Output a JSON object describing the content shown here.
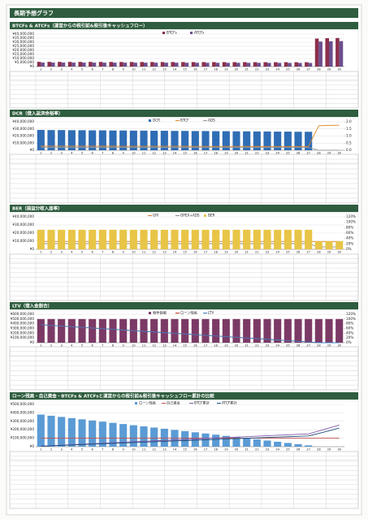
{
  "page_title": "長期予想グラフ",
  "chart_data": [
    {
      "type": "bar",
      "title": "BTCFs & ATCFs（運営からの税引前&税引後キャッシュフロー）",
      "categories": [
        "1",
        "2",
        "3",
        "4",
        "5",
        "6",
        "7",
        "8",
        "9",
        "10",
        "11",
        "12",
        "13",
        "14",
        "15",
        "16",
        "17",
        "18",
        "19",
        "20",
        "21",
        "22",
        "23",
        "24",
        "25",
        "26",
        "27",
        "28",
        "29",
        "30"
      ],
      "series": [
        {
          "name": "BTCFs",
          "type": "bar",
          "color": "#8b2f4a",
          "values": [
            5850000,
            5830000,
            5810000,
            5790000,
            5770000,
            5750000,
            5730000,
            5710000,
            5690000,
            5670000,
            5650000,
            5630000,
            5610000,
            5590000,
            5570000,
            5550000,
            5530000,
            5510000,
            5490000,
            5470000,
            5450000,
            5430000,
            5410000,
            5390000,
            5370000,
            5350000,
            5330000,
            34500000,
            35000000,
            35200000
          ]
        },
        {
          "name": "ATCFs",
          "type": "bar",
          "color": "#6b4f8f",
          "values": [
            4950000,
            4930000,
            4910000,
            4890000,
            4870000,
            4850000,
            4830000,
            4810000,
            4790000,
            4770000,
            4750000,
            4730000,
            4710000,
            4690000,
            4670000,
            4650000,
            4630000,
            4610000,
            4590000,
            4570000,
            4550000,
            4530000,
            4510000,
            4490000,
            4470000,
            4450000,
            4430000,
            30800000,
            31200000,
            31400000
          ]
        }
      ],
      "ylim": [
        0,
        40000000
      ],
      "yticks": [
        {
          "value": 0,
          "label": "¥0"
        },
        {
          "value": 5000000,
          "label": "¥5,000,000"
        },
        {
          "value": 10000000,
          "label": "¥10,000,000"
        },
        {
          "value": 15000000,
          "label": "¥15,000,000"
        },
        {
          "value": 20000000,
          "label": "¥20,000,000"
        },
        {
          "value": 25000000,
          "label": "¥25,000,000"
        },
        {
          "value": 30000000,
          "label": "¥30,000,000"
        },
        {
          "value": 35000000,
          "label": "¥35,000,000"
        },
        {
          "value": 40000000,
          "label": "¥40,000,000"
        }
      ],
      "grid": true
    },
    {
      "type": "bar",
      "title": "DCR（借入返済余裕率）",
      "categories": [
        "1",
        "2",
        "3",
        "4",
        "5",
        "6",
        "7",
        "8",
        "9",
        "10",
        "11",
        "12",
        "13",
        "14",
        "15",
        "16",
        "17",
        "18",
        "19",
        "20",
        "21",
        "22",
        "23",
        "24",
        "25",
        "26",
        "27",
        "28",
        "29",
        "30"
      ],
      "series": [
        {
          "name": "DCR",
          "type": "bar",
          "axis": "y2",
          "color": "#2f6db5",
          "values": [
            1.43,
            1.42,
            1.42,
            1.41,
            1.41,
            1.4,
            1.4,
            1.39,
            1.39,
            1.38,
            1.38,
            1.37,
            1.37,
            1.36,
            1.36,
            1.35,
            1.35,
            1.34,
            1.34,
            1.33,
            1.33,
            1.32,
            1.32,
            1.31,
            1.31,
            1.3,
            1.3,
            null,
            null,
            null
          ]
        },
        {
          "name": "BTCF",
          "type": "line",
          "color": "#e08a2a",
          "values": [
            5850000,
            5830000,
            5810000,
            5790000,
            5770000,
            5750000,
            5730000,
            5710000,
            5690000,
            5670000,
            5650000,
            5630000,
            5610000,
            5590000,
            5570000,
            5550000,
            5530000,
            5510000,
            5490000,
            5470000,
            5450000,
            5430000,
            5410000,
            5390000,
            5370000,
            5350000,
            5330000,
            34500000,
            35000000,
            35200000
          ]
        },
        {
          "name": "ADS",
          "type": "line",
          "color": "#9a9a9a",
          "values": [
            4100000,
            4100000,
            4100000,
            4100000,
            4100000,
            4100000,
            4100000,
            4100000,
            4100000,
            4100000,
            4100000,
            4100000,
            4100000,
            4100000,
            4100000,
            4100000,
            4100000,
            4100000,
            4100000,
            4100000,
            4100000,
            4100000,
            4100000,
            4100000,
            4100000,
            4100000,
            4100000,
            0,
            0,
            0
          ]
        }
      ],
      "ylim": [
        0,
        40000000
      ],
      "yticks": [
        {
          "value": 0,
          "label": "¥0"
        },
        {
          "value": 10000000,
          "label": "¥10,000,000"
        },
        {
          "value": 20000000,
          "label": "¥20,000,000"
        },
        {
          "value": 30000000,
          "label": "¥30,000,000"
        },
        {
          "value": 40000000,
          "label": "¥40,000,000"
        }
      ],
      "y2lim": [
        0,
        2
      ],
      "y2ticks": [
        {
          "value": 0,
          "label": "0.0"
        },
        0.5,
        {
          "value": 1,
          "label": "1.0"
        },
        1.5,
        {
          "value": 2,
          "label": "2.0"
        }
      ],
      "grid": true
    },
    {
      "type": "bar",
      "title": "BER（損益分岐入居率）",
      "categories": [
        "1",
        "2",
        "3",
        "4",
        "5",
        "6",
        "7",
        "8",
        "9",
        "10",
        "11",
        "12",
        "13",
        "14",
        "15",
        "16",
        "17",
        "18",
        "19",
        "20",
        "21",
        "22",
        "23",
        "24",
        "25",
        "26",
        "27",
        "28",
        "29",
        "30"
      ],
      "series": [
        {
          "name": "GPI",
          "type": "line",
          "color": "#d67b2a",
          "values": [
            9700000,
            9700000,
            9700000,
            9700000,
            9700000,
            9700000,
            9700000,
            9700000,
            9700000,
            9700000,
            9700000,
            9700000,
            9700000,
            9700000,
            9700000,
            9700000,
            9700000,
            9700000,
            9700000,
            9700000,
            9700000,
            9700000,
            9700000,
            9700000,
            9700000,
            9700000,
            9700000,
            9700000,
            9700000,
            9700000
          ]
        },
        {
          "name": "OPEX+ADS",
          "type": "line",
          "color": "#8a8a8a",
          "values": [
            7000000,
            7000000,
            7000000,
            7000000,
            7000000,
            7000000,
            7000000,
            7000000,
            7000000,
            7000000,
            7000000,
            7000000,
            7000000,
            7000000,
            7000000,
            7000000,
            7000000,
            7000000,
            7000000,
            7000000,
            7000000,
            7000000,
            7000000,
            7000000,
            7000000,
            7000000,
            7000000,
            2900000,
            2900000,
            2900000
          ]
        },
        {
          "name": "BER",
          "type": "bar",
          "axis": "y2",
          "color": "#e8c547",
          "values": [
            72.2,
            72.2,
            72.2,
            72.2,
            72.2,
            72.2,
            72.2,
            72.2,
            72.2,
            72.2,
            72.2,
            72.2,
            72.2,
            72.2,
            72.2,
            72.2,
            72.2,
            72.2,
            72.2,
            72.2,
            72.2,
            72.2,
            72.2,
            72.2,
            72.2,
            72.2,
            72.2,
            29.9,
            29.9,
            29.9
          ]
        }
      ],
      "ylim": [
        0,
        40000000
      ],
      "yticks": [
        {
          "value": 0,
          "label": "¥0"
        },
        {
          "value": 10000000,
          "label": "¥10,000,000"
        },
        {
          "value": 20000000,
          "label": "¥20,000,000"
        },
        {
          "value": 30000000,
          "label": "¥30,000,000"
        },
        {
          "value": 40000000,
          "label": "¥40,000,000"
        }
      ],
      "y2lim": [
        0,
        120
      ],
      "y2ticks": [
        {
          "value": 0,
          "label": "0%"
        },
        {
          "value": 20,
          "label": "20%"
        },
        {
          "value": 40,
          "label": "40%"
        },
        {
          "value": 60,
          "label": "60%"
        },
        {
          "value": 80,
          "label": "80%"
        },
        {
          "value": 100,
          "label": "100%"
        },
        {
          "value": 120,
          "label": "120%"
        }
      ],
      "grid": true
    },
    {
      "type": "bar",
      "title": "LTV（借入金割合）",
      "categories": [
        "1",
        "2",
        "3",
        "4",
        "5",
        "6",
        "7",
        "8",
        "9",
        "10",
        "11",
        "12",
        "13",
        "14",
        "15",
        "16",
        "17",
        "18",
        "19",
        "20",
        "21",
        "22",
        "23",
        "24",
        "25",
        "26",
        "27",
        "28",
        "29",
        "30"
      ],
      "series": [
        {
          "name": "物件価値",
          "type": "bar",
          "color": "#7b3a66",
          "values": [
            500000000,
            500000000,
            500000000,
            500000000,
            500000000,
            500000000,
            500000000,
            500000000,
            500000000,
            500000000,
            500000000,
            500000000,
            500000000,
            500000000,
            500000000,
            500000000,
            500000000,
            500000000,
            500000000,
            500000000,
            500000000,
            500000000,
            500000000,
            500000000,
            500000000,
            500000000,
            500000000,
            500000000,
            500000000,
            500000000
          ]
        },
        {
          "name": "ローン残高",
          "type": "line",
          "color": "#c0392b",
          "values": [
            380000000,
            366000000,
            352000000,
            338000000,
            324000000,
            310000000,
            296000000,
            282000000,
            268000000,
            254000000,
            240000000,
            226000000,
            212000000,
            198000000,
            184000000,
            170000000,
            156000000,
            142000000,
            128000000,
            114000000,
            100000000,
            86000000,
            72000000,
            58000000,
            44000000,
            30000000,
            16000000,
            0,
            0,
            0
          ]
        },
        {
          "name": "LTV",
          "type": "line",
          "axis": "y2",
          "color": "#3c7dc4",
          "values": [
            76,
            73.2,
            70.4,
            67.6,
            64.8,
            62,
            59.2,
            56.4,
            53.6,
            50.8,
            48,
            45.2,
            42.4,
            39.6,
            36.8,
            34,
            31.2,
            28.4,
            25.6,
            22.8,
            20,
            17.2,
            14.4,
            11.6,
            8.8,
            6,
            3.2,
            0,
            0,
            0
          ]
        }
      ],
      "ylim": [
        0,
        600000000
      ],
      "yticks": [
        {
          "value": 0,
          "label": "¥0"
        },
        {
          "value": 100000000,
          "label": "¥100,000,000"
        },
        {
          "value": 200000000,
          "label": "¥200,000,000"
        },
        {
          "value": 300000000,
          "label": "¥300,000,000"
        },
        {
          "value": 400000000,
          "label": "¥400,000,000"
        },
        {
          "value": 500000000,
          "label": "¥500,000,000"
        },
        {
          "value": 600000000,
          "label": "¥600,000,000"
        }
      ],
      "y2lim": [
        0,
        120
      ],
      "y2ticks": [
        {
          "value": 0,
          "label": "0%"
        },
        {
          "value": 20,
          "label": "20%"
        },
        {
          "value": 40,
          "label": "40%"
        },
        {
          "value": 60,
          "label": "60%"
        },
        {
          "value": 80,
          "label": "80%"
        },
        {
          "value": 100,
          "label": "100%"
        },
        {
          "value": 120,
          "label": "120%"
        }
      ],
      "grid": true
    },
    {
      "type": "bar",
      "title": "ローン残高・自己資金・BTCFs & ATCFsと運営からの税引前&税引後キャッシュフロー累計の比較",
      "categories": [
        "1",
        "2",
        "3",
        "4",
        "5",
        "6",
        "7",
        "8",
        "9",
        "10",
        "11",
        "12",
        "13",
        "14",
        "15",
        "16",
        "17",
        "18",
        "19",
        "20",
        "21",
        "22",
        "23",
        "24",
        "25",
        "26",
        "27",
        "28",
        "29",
        "30"
      ],
      "series": [
        {
          "name": "ローン残高",
          "type": "bar",
          "color": "#5b9bd5",
          "values": [
            380000000,
            366000000,
            352000000,
            338000000,
            324000000,
            310000000,
            296000000,
            282000000,
            268000000,
            254000000,
            240000000,
            226000000,
            212000000,
            198000000,
            184000000,
            170000000,
            156000000,
            142000000,
            128000000,
            114000000,
            100000000,
            86000000,
            72000000,
            58000000,
            44000000,
            30000000,
            16000000,
            0,
            0,
            0
          ]
        },
        {
          "name": "自己資金",
          "type": "line",
          "color": "#c0504d",
          "values": [
            100000000,
            100000000,
            100000000,
            100000000,
            100000000,
            100000000,
            100000000,
            100000000,
            100000000,
            100000000,
            100000000,
            100000000,
            100000000,
            100000000,
            100000000,
            100000000,
            100000000,
            100000000,
            100000000,
            100000000,
            100000000,
            100000000,
            100000000,
            100000000,
            100000000,
            100000000,
            100000000,
            100000000,
            100000000,
            100000000
          ]
        },
        {
          "name": "BTCF累計",
          "type": "line",
          "color": "#7e57a8",
          "values": [
            5850000,
            11680000,
            17490000,
            23280000,
            29050000,
            34800000,
            40530000,
            46240000,
            51930000,
            57600000,
            63250000,
            68880000,
            74490000,
            80080000,
            85650000,
            91200000,
            96730000,
            102240000,
            107730000,
            113200000,
            118650000,
            124080000,
            129490000,
            134880000,
            140250000,
            145600000,
            150930000,
            185430000,
            220430000,
            255630000
          ]
        },
        {
          "name": "ATCF累計",
          "type": "line",
          "color": "#1f4e79",
          "values": [
            4950000,
            9880000,
            14790000,
            19680000,
            24550000,
            29400000,
            34230000,
            39040000,
            43830000,
            48600000,
            53350000,
            58080000,
            62790000,
            67480000,
            72150000,
            76800000,
            81430000,
            86040000,
            90630000,
            95200000,
            99750000,
            104280000,
            108790000,
            113280000,
            117750000,
            122200000,
            126630000,
            157430000,
            188630000,
            220030000
          ]
        }
      ],
      "ylim": [
        0,
        500000000
      ],
      "yticks": [
        {
          "value": 0,
          "label": "¥0"
        },
        {
          "value": 100000000,
          "label": "¥100,000,000"
        },
        {
          "value": 200000000,
          "label": "¥200,000,000"
        },
        {
          "value": 300000000,
          "label": "¥300,000,000"
        },
        {
          "value": 400000000,
          "label": "¥400,000,000"
        },
        {
          "value": 500000000,
          "label": "¥500,000,000"
        }
      ],
      "grid": true
    }
  ]
}
